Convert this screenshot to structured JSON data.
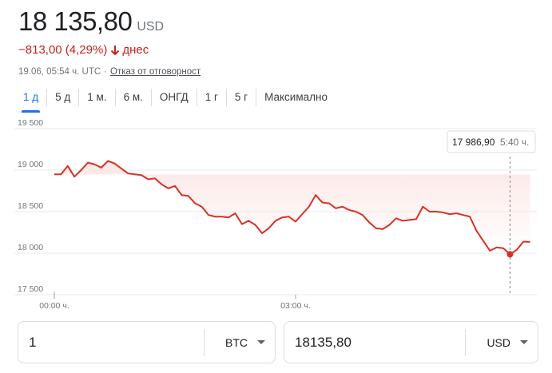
{
  "quote": {
    "price": "18 135,80",
    "currency": "USD",
    "change": "−813,00 (4,29%)",
    "change_period": "днес",
    "direction_icon": "arrow-down-icon",
    "timestamp": "19.06, 05:54 ч. UTC",
    "separator": "·",
    "disclaimer": "Отказ от отговорност"
  },
  "tabs": [
    {
      "label": "1 д",
      "active": true
    },
    {
      "label": "5 д",
      "active": false
    },
    {
      "label": "1 м.",
      "active": false
    },
    {
      "label": "6 м.",
      "active": false
    },
    {
      "label": "ОНГД",
      "active": false
    },
    {
      "label": "1 г",
      "active": false
    },
    {
      "label": "5 г",
      "active": false
    },
    {
      "label": "Максимално",
      "active": false
    }
  ],
  "tooltip": {
    "value": "17 986,90",
    "time": "5:40 ч."
  },
  "chart_data": {
    "type": "area",
    "ylim": [
      17500,
      19500
    ],
    "y_ticks": [
      {
        "value": 17500,
        "label": "17 500"
      },
      {
        "value": 18000,
        "label": "18 000"
      },
      {
        "value": 18500,
        "label": "18 500"
      },
      {
        "value": 19000,
        "label": "19 000"
      },
      {
        "value": 19500,
        "label": "19 500"
      }
    ],
    "x_range_hours": [
      0,
      6
    ],
    "x_ticks": [
      {
        "value": 0,
        "label": "00:00 ч."
      },
      {
        "value": 3,
        "label": "03:00 ч."
      }
    ],
    "previous_close": 18948.8,
    "grid": true,
    "colors": {
      "line": "#d93025",
      "fill": "#fce8e6",
      "grid": "#e8eaed",
      "crosshair": "#80868b"
    },
    "highlight": {
      "x": 5.667,
      "y": 17986.9
    },
    "series": [
      {
        "x": [
          0,
          0.083,
          0.167,
          0.25,
          0.333,
          0.417,
          0.5,
          0.583,
          0.667,
          0.75,
          0.833,
          0.917,
          1.0,
          1.083,
          1.167,
          1.25,
          1.333,
          1.417,
          1.5,
          1.583,
          1.667,
          1.75,
          1.833,
          1.917,
          2.0,
          2.083,
          2.167,
          2.25,
          2.333,
          2.417,
          2.5,
          2.583,
          2.667,
          2.75,
          2.833,
          2.917,
          3.0,
          3.083,
          3.167,
          3.25,
          3.333,
          3.417,
          3.5,
          3.583,
          3.667,
          3.75,
          3.833,
          3.917,
          4.0,
          4.083,
          4.167,
          4.25,
          4.333,
          4.417,
          4.5,
          4.583,
          4.667,
          4.75,
          4.833,
          4.917,
          5.0,
          5.083,
          5.167,
          5.25,
          5.333,
          5.417,
          5.5,
          5.583,
          5.667,
          5.75,
          5.833,
          5.917
        ],
        "y": [
          18950,
          18950,
          19050,
          18920,
          19000,
          19090,
          19070,
          19030,
          19110,
          19080,
          19020,
          18960,
          18950,
          18940,
          18890,
          18900,
          18830,
          18780,
          18810,
          18700,
          18690,
          18600,
          18560,
          18460,
          18440,
          18440,
          18430,
          18480,
          18350,
          18390,
          18340,
          18240,
          18300,
          18390,
          18430,
          18440,
          18380,
          18470,
          18560,
          18700,
          18610,
          18600,
          18540,
          18560,
          18520,
          18500,
          18460,
          18370,
          18300,
          18290,
          18340,
          18420,
          18390,
          18400,
          18410,
          18560,
          18500,
          18500,
          18490,
          18470,
          18480,
          18460,
          18440,
          18270,
          18150,
          18030,
          18070,
          18060,
          17987,
          18040,
          18140,
          18136
        ]
      }
    ]
  },
  "converter": {
    "from_value": "1",
    "from_unit": "BTC",
    "to_value": "18135,80",
    "to_unit": "USD"
  }
}
